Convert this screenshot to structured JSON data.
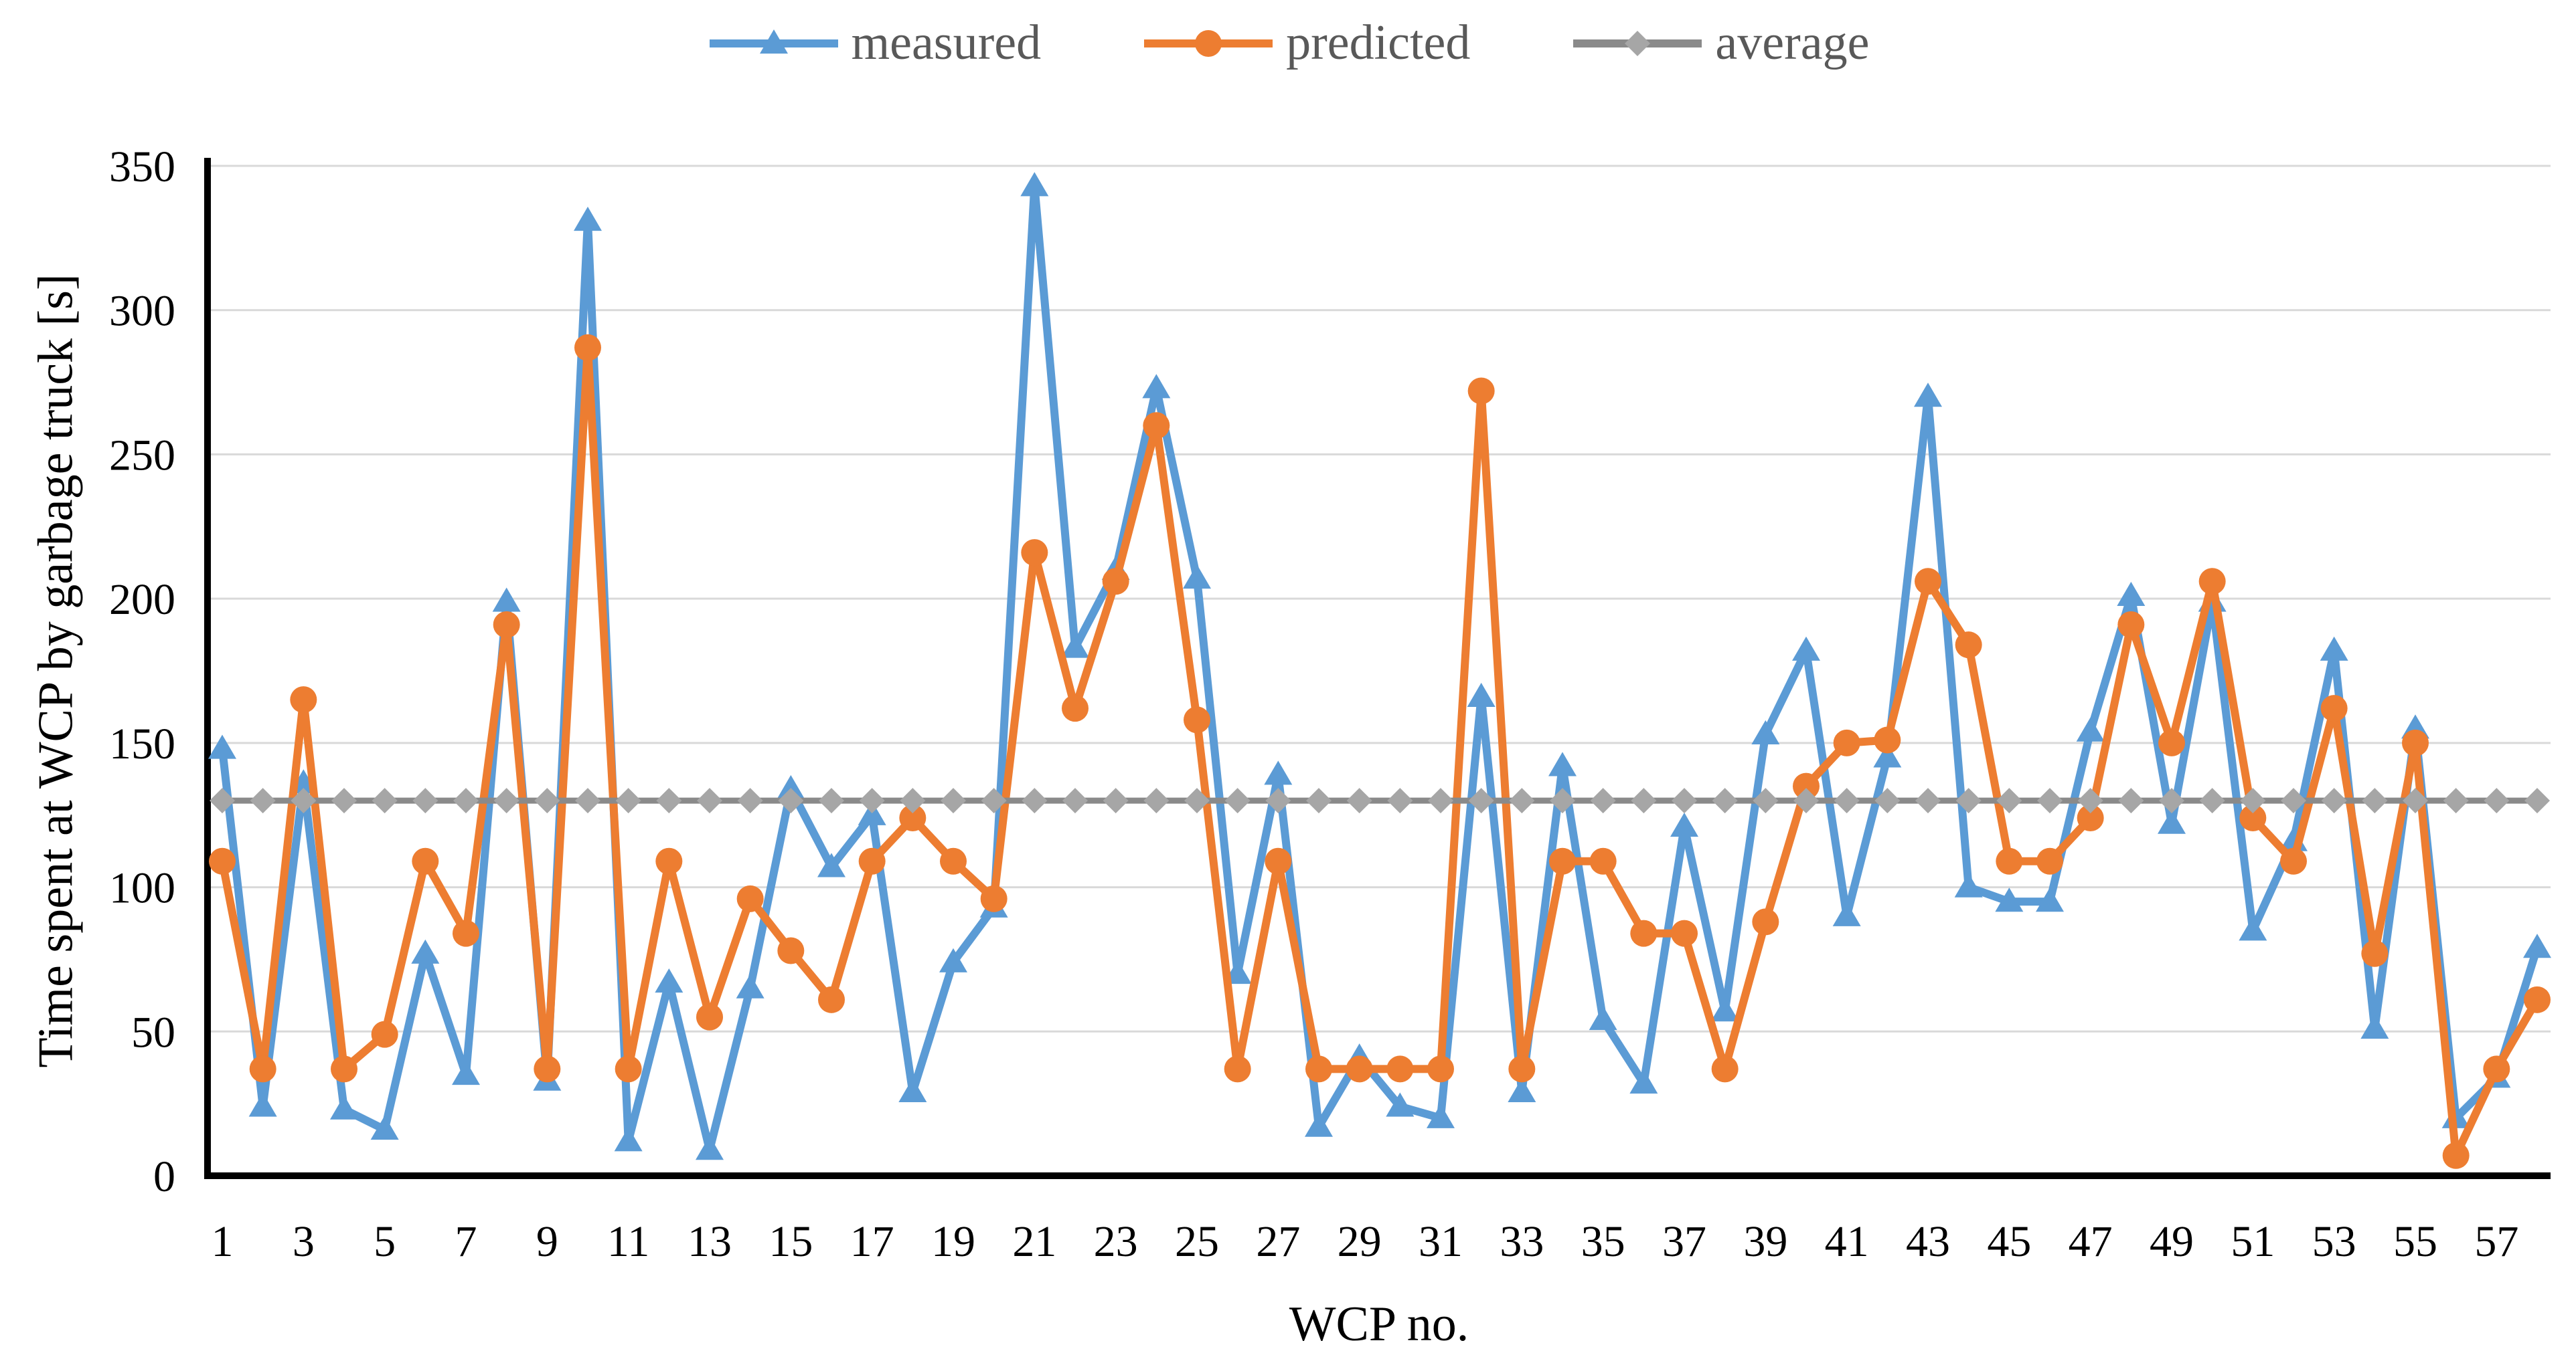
{
  "figure": {
    "kind": "line-chart-screenshot"
  },
  "legend": {
    "position": "top center",
    "items": [
      "measured",
      "predicted",
      "average"
    ]
  },
  "axes": {
    "y_title": "Time spent at WCP by garbage truck [s]",
    "x_title": "WCP no.",
    "y_tick_labels": [
      "0",
      "50",
      "100",
      "150",
      "200",
      "250",
      "300",
      "350"
    ],
    "x_tick_labels": [
      "1",
      "3",
      "5",
      "7",
      "9",
      "11",
      "13",
      "15",
      "17",
      "19",
      "21",
      "23",
      "25",
      "27",
      "29",
      "31",
      "33",
      "35",
      "37",
      "39",
      "41",
      "43",
      "45",
      "47",
      "49",
      "51",
      "53",
      "55",
      "57"
    ]
  },
  "chart_data": {
    "type": "line",
    "title": "",
    "xlabel": "WCP no.",
    "ylabel": "Time spent at WCP by garbage truck [s]",
    "ylim": [
      0,
      350
    ],
    "ytick_step": 50,
    "grid": "horizontal",
    "legend_position": "top center",
    "x": [
      1,
      2,
      3,
      4,
      5,
      6,
      7,
      8,
      9,
      10,
      11,
      12,
      13,
      14,
      15,
      16,
      17,
      18,
      19,
      20,
      21,
      22,
      23,
      24,
      25,
      26,
      27,
      28,
      29,
      30,
      31,
      32,
      33,
      34,
      35,
      36,
      37,
      38,
      39,
      40,
      41,
      42,
      43,
      44,
      45,
      46,
      47,
      48,
      49,
      50,
      51,
      52,
      53,
      54,
      55,
      56,
      57,
      58
    ],
    "series": [
      {
        "name": "measured",
        "marker": "triangle",
        "color": "#5B9BD5",
        "values": [
          148,
          24,
          136,
          23,
          16,
          77,
          35,
          199,
          33,
          331,
          12,
          67,
          9,
          65,
          134,
          107,
          125,
          29,
          74,
          93,
          343,
          183,
          210,
          273,
          207,
          70,
          139,
          17,
          41,
          24,
          20,
          166,
          29,
          142,
          54,
          32,
          121,
          57,
          153,
          182,
          90,
          145,
          270,
          100,
          95,
          95,
          154,
          201,
          122,
          199,
          85,
          116,
          182,
          51,
          155,
          20,
          34,
          79
        ]
      },
      {
        "name": "predicted",
        "marker": "circle",
        "color": "#ED7D31",
        "values": [
          109,
          37,
          165,
          37,
          49,
          109,
          84,
          191,
          37,
          287,
          37,
          109,
          55,
          96,
          78,
          61,
          109,
          124,
          109,
          96,
          216,
          162,
          206,
          260,
          158,
          37,
          109,
          37,
          37,
          37,
          37,
          272,
          37,
          109,
          109,
          84,
          84,
          37,
          88,
          135,
          150,
          151,
          206,
          184,
          109,
          109,
          124,
          191,
          150,
          206,
          124,
          109,
          162,
          77,
          150,
          7,
          37,
          61
        ]
      },
      {
        "name": "average",
        "marker": "diamond",
        "color": "#A6A6A6",
        "line_color": "#8A8A8A",
        "constant": 130
      }
    ],
    "colors": {
      "gridline": "#D9D9D9",
      "axis": "#000000",
      "tick_text": "#000000",
      "legend_text": "#595959"
    }
  }
}
